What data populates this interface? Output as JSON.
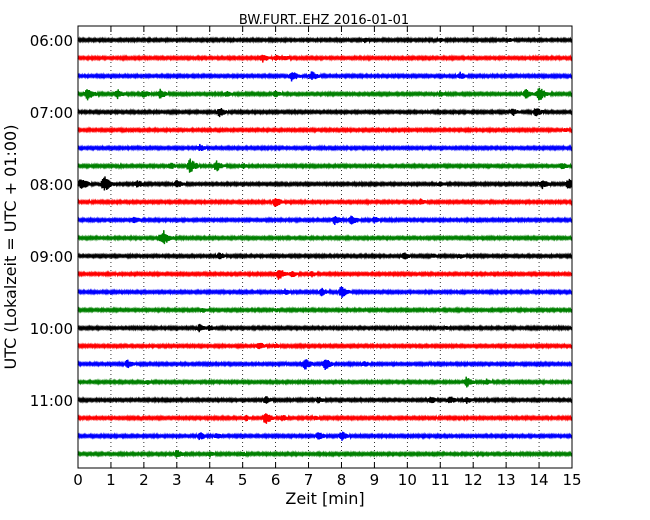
{
  "chart_data": {
    "type": "line",
    "title": "BW.FURT..EHZ 2016-01-01",
    "xlabel": "Zeit  [min]",
    "ylabel": "UTC (Lokalzeit = UTC + 01:00)",
    "xlim": [
      0,
      15
    ],
    "x_ticks": [
      "0",
      "1",
      "2",
      "3",
      "4",
      "5",
      "6",
      "7",
      "8",
      "9",
      "10",
      "11",
      "12",
      "13",
      "14",
      "15"
    ],
    "y_ticks": [
      "06:00",
      "07:00",
      "08:00",
      "09:00",
      "10:00",
      "11:00"
    ],
    "grid": "vertical dotted lines at each minute",
    "series_colors": [
      "#000000",
      "#ff0000",
      "#0000ff",
      "#008000"
    ],
    "traces": [
      {
        "start": "06:00",
        "color": "#000000",
        "events": [
          {
            "t": 8.7,
            "a": 0.35
          },
          {
            "t": 11.0,
            "a": 0.3
          },
          {
            "t": 13.1,
            "a": 0.3
          }
        ]
      },
      {
        "start": "06:15",
        "color": "#ff0000",
        "events": [
          {
            "t": 5.6,
            "a": 0.55
          },
          {
            "t": 6.0,
            "a": 0.45
          },
          {
            "t": 6.3,
            "a": 0.35
          }
        ]
      },
      {
        "start": "06:30",
        "color": "#0000ff",
        "events": [
          {
            "t": 6.5,
            "a": 0.7
          },
          {
            "t": 7.1,
            "a": 0.6
          },
          {
            "t": 11.6,
            "a": 0.5
          }
        ]
      },
      {
        "start": "06:45",
        "color": "#008000",
        "events": [
          {
            "t": 0.3,
            "a": 0.8
          },
          {
            "t": 1.2,
            "a": 0.6
          },
          {
            "t": 2.0,
            "a": 0.5
          },
          {
            "t": 2.5,
            "a": 0.6
          },
          {
            "t": 4.5,
            "a": 0.4
          },
          {
            "t": 6.0,
            "a": 0.45
          },
          {
            "t": 11.0,
            "a": 0.4
          },
          {
            "t": 13.6,
            "a": 0.6
          },
          {
            "t": 14.0,
            "a": 0.9
          }
        ]
      },
      {
        "start": "07:00",
        "color": "#000000",
        "events": [
          {
            "t": 4.3,
            "a": 0.6
          },
          {
            "t": 13.2,
            "a": 0.5
          },
          {
            "t": 13.9,
            "a": 0.6
          }
        ]
      },
      {
        "start": "07:15",
        "color": "#ff0000",
        "events": [
          {
            "t": 12.5,
            "a": 0.2
          },
          {
            "t": 14.8,
            "a": 0.3
          }
        ]
      },
      {
        "start": "07:30",
        "color": "#0000ff",
        "events": [
          {
            "t": 3.7,
            "a": 0.45
          }
        ]
      },
      {
        "start": "07:45",
        "color": "#008000",
        "events": [
          {
            "t": 2.8,
            "a": 0.5
          },
          {
            "t": 3.4,
            "a": 0.9
          },
          {
            "t": 4.2,
            "a": 0.7
          },
          {
            "t": 5.0,
            "a": 0.4
          },
          {
            "t": 14.7,
            "a": 0.5
          }
        ]
      },
      {
        "start": "08:00",
        "color": "#000000",
        "events": [
          {
            "t": 0.1,
            "a": 0.8
          },
          {
            "t": 0.8,
            "a": 1.0
          },
          {
            "t": 1.8,
            "a": 0.5
          },
          {
            "t": 3.0,
            "a": 0.6
          },
          {
            "t": 11.0,
            "a": 0.4
          },
          {
            "t": 14.1,
            "a": 0.6
          },
          {
            "t": 14.9,
            "a": 0.7
          }
        ]
      },
      {
        "start": "08:15",
        "color": "#ff0000",
        "events": [
          {
            "t": 6.0,
            "a": 0.65
          },
          {
            "t": 10.4,
            "a": 0.4
          }
        ]
      },
      {
        "start": "08:30",
        "color": "#0000ff",
        "events": [
          {
            "t": 1.7,
            "a": 0.5
          },
          {
            "t": 7.8,
            "a": 0.6
          },
          {
            "t": 8.3,
            "a": 0.7
          },
          {
            "t": 9.0,
            "a": 0.45
          }
        ]
      },
      {
        "start": "08:45",
        "color": "#008000",
        "events": [
          {
            "t": 2.5,
            "a": 0.5
          },
          {
            "t": 2.6,
            "a": 0.9
          }
        ]
      },
      {
        "start": "09:00",
        "color": "#000000",
        "events": [
          {
            "t": 4.3,
            "a": 0.45
          },
          {
            "t": 9.9,
            "a": 0.5
          },
          {
            "t": 10.8,
            "a": 0.3
          },
          {
            "t": 11.6,
            "a": 0.35
          }
        ]
      },
      {
        "start": "09:15",
        "color": "#ff0000",
        "events": [
          {
            "t": 6.1,
            "a": 0.75
          },
          {
            "t": 6.5,
            "a": 0.45
          },
          {
            "t": 7.1,
            "a": 0.4
          }
        ]
      },
      {
        "start": "09:30",
        "color": "#0000ff",
        "events": [
          {
            "t": 6.3,
            "a": 0.45
          },
          {
            "t": 7.4,
            "a": 0.55
          },
          {
            "t": 8.0,
            "a": 0.75
          }
        ]
      },
      {
        "start": "09:45",
        "color": "#008000",
        "events": [
          {
            "t": 3.8,
            "a": 0.35
          },
          {
            "t": 6.0,
            "a": 0.3
          }
        ]
      },
      {
        "start": "10:00",
        "color": "#000000",
        "events": [
          {
            "t": 3.7,
            "a": 0.55
          },
          {
            "t": 4.0,
            "a": 0.4
          },
          {
            "t": 11.2,
            "a": 0.3
          }
        ]
      },
      {
        "start": "10:15",
        "color": "#ff0000",
        "events": [
          {
            "t": 5.5,
            "a": 0.55
          },
          {
            "t": 6.0,
            "a": 0.35
          }
        ]
      },
      {
        "start": "10:30",
        "color": "#0000ff",
        "events": [
          {
            "t": 1.5,
            "a": 0.55
          },
          {
            "t": 6.9,
            "a": 0.7
          },
          {
            "t": 7.5,
            "a": 0.75
          },
          {
            "t": 8.7,
            "a": 0.4
          }
        ]
      },
      {
        "start": "10:45",
        "color": "#008000",
        "events": [
          {
            "t": 2.1,
            "a": 0.35
          },
          {
            "t": 11.8,
            "a": 0.65
          },
          {
            "t": 12.4,
            "a": 0.4
          }
        ]
      },
      {
        "start": "11:00",
        "color": "#000000",
        "events": [
          {
            "t": 5.7,
            "a": 0.5
          },
          {
            "t": 7.3,
            "a": 0.45
          },
          {
            "t": 10.7,
            "a": 0.5
          },
          {
            "t": 11.3,
            "a": 0.5
          },
          {
            "t": 11.8,
            "a": 0.45
          }
        ]
      },
      {
        "start": "11:15",
        "color": "#ff0000",
        "events": [
          {
            "t": 5.1,
            "a": 0.4
          },
          {
            "t": 5.7,
            "a": 0.75
          },
          {
            "t": 6.2,
            "a": 0.45
          },
          {
            "t": 7.2,
            "a": 0.35
          }
        ]
      },
      {
        "start": "11:30",
        "color": "#0000ff",
        "events": [
          {
            "t": 3.7,
            "a": 0.55
          },
          {
            "t": 4.2,
            "a": 0.4
          },
          {
            "t": 7.3,
            "a": 0.55
          },
          {
            "t": 8.0,
            "a": 0.6
          }
        ]
      },
      {
        "start": "11:45",
        "color": "#008000",
        "events": [
          {
            "t": 3.0,
            "a": 0.55
          },
          {
            "t": 4.0,
            "a": 0.4
          },
          {
            "t": 5.0,
            "a": 0.3
          }
        ]
      }
    ]
  }
}
